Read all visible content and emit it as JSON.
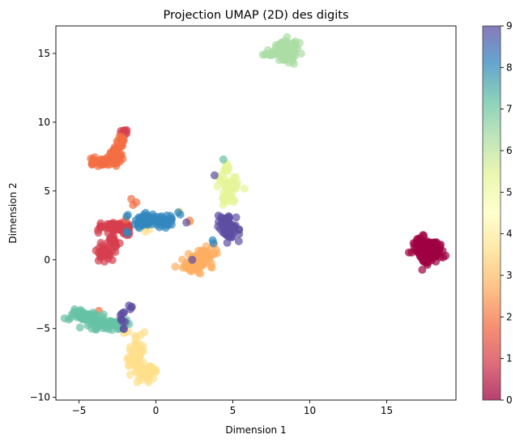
{
  "chart_data": {
    "type": "scatter",
    "title": "Projection UMAP (2D) des digits",
    "xlabel": "Dimension 1",
    "ylabel": "Dimension 2",
    "xlim": [
      -6.5,
      19.5
    ],
    "ylim": [
      -10.2,
      17.0
    ],
    "xticks": [
      -5,
      0,
      5,
      10,
      15
    ],
    "yticks": [
      -10,
      -5,
      0,
      5,
      10,
      15
    ],
    "grid": false,
    "colormap": "Spectral",
    "colorbar": {
      "range": [
        0,
        9
      ],
      "ticks": [
        0,
        1,
        2,
        3,
        4,
        5,
        6,
        7,
        8,
        9
      ]
    },
    "clusters": [
      {
        "label": 0,
        "color": "#9e0142",
        "blobs": [
          [
            17.5,
            0.9,
            0.4,
            0.4,
            90
          ],
          [
            18.0,
            0.6,
            0.3,
            0.35,
            60
          ],
          [
            17.4,
            0.2,
            0.15,
            0.3,
            20
          ]
        ]
      },
      {
        "label": 1,
        "color": "#d53e4f",
        "blobs": [
          [
            -2.6,
            2.4,
            0.6,
            0.15,
            60
          ],
          [
            -3.3,
            0.5,
            0.25,
            0.35,
            30
          ],
          [
            -2.9,
            1.1,
            0.2,
            0.25,
            15
          ],
          [
            -2.1,
            9.3,
            0.12,
            0.15,
            8
          ],
          [
            -2.0,
            1.9,
            0.2,
            0.12,
            8
          ],
          [
            -2.8,
            1.6,
            0.12,
            0.12,
            6
          ]
        ]
      },
      {
        "label": 2,
        "color": "#f46d43",
        "blobs": [
          [
            -3.4,
            7.1,
            0.5,
            0.15,
            45
          ],
          [
            -2.5,
            7.7,
            0.25,
            0.5,
            30
          ],
          [
            -2.3,
            8.6,
            0.1,
            0.25,
            10
          ],
          [
            -1.5,
            4.2,
            0.1,
            0.1,
            3
          ],
          [
            2.2,
            2.8,
            0.05,
            0.05,
            1
          ],
          [
            -3.7,
            -3.8,
            0.05,
            0.05,
            1
          ],
          [
            -2.0,
            3.0,
            0.05,
            0.05,
            1
          ]
        ]
      },
      {
        "label": 3,
        "color": "#fdae61",
        "blobs": [
          [
            2.6,
            0.0,
            0.4,
            0.3,
            50
          ],
          [
            2.3,
            -0.6,
            0.3,
            0.15,
            20
          ],
          [
            3.2,
            0.4,
            0.3,
            0.3,
            20
          ],
          [
            3.8,
            0.6,
            0.1,
            0.2,
            4
          ],
          [
            2.3,
            2.8,
            0.05,
            0.05,
            1
          ]
        ]
      },
      {
        "label": 4,
        "color": "#fee08b",
        "blobs": [
          [
            -1.3,
            -6.8,
            0.3,
            0.6,
            40
          ],
          [
            -0.8,
            -7.9,
            0.35,
            0.3,
            40
          ],
          [
            -0.6,
            -8.4,
            0.3,
            0.25,
            20
          ],
          [
            -2.0,
            -5.2,
            0.1,
            0.1,
            4
          ],
          [
            -0.6,
            2.2,
            0.1,
            0.1,
            3
          ],
          [
            1.5,
            3.5,
            0.05,
            0.05,
            1
          ]
        ]
      },
      {
        "label": 5,
        "color": "#e6f598",
        "blobs": [
          [
            4.8,
            5.2,
            0.3,
            0.6,
            45
          ],
          [
            4.6,
            6.6,
            0.15,
            0.3,
            12
          ],
          [
            4.1,
            5.8,
            0.1,
            0.2,
            5
          ]
        ]
      },
      {
        "label": 6,
        "color": "#abdda4",
        "blobs": [
          [
            8.5,
            15.0,
            0.4,
            0.4,
            60
          ],
          [
            8.6,
            15.6,
            0.25,
            0.2,
            20
          ],
          [
            7.5,
            15.0,
            0.3,
            0.12,
            15
          ]
        ]
      },
      {
        "label": 7,
        "color": "#66c2a5",
        "blobs": [
          [
            -4.6,
            -4.1,
            0.5,
            0.2,
            50
          ],
          [
            -3.6,
            -4.7,
            0.5,
            0.2,
            50
          ],
          [
            -2.6,
            -4.7,
            0.3,
            0.2,
            20
          ],
          [
            4.5,
            7.3,
            0.05,
            0.05,
            1
          ],
          [
            -1.9,
            -4.5,
            0.1,
            0.1,
            3
          ]
        ]
      },
      {
        "label": 8,
        "color": "#3288bd",
        "blobs": [
          [
            -0.4,
            2.9,
            0.5,
            0.25,
            50
          ],
          [
            0.5,
            2.8,
            0.3,
            0.25,
            25
          ],
          [
            -1.2,
            2.7,
            0.25,
            0.2,
            15
          ],
          [
            1.6,
            3.4,
            0.08,
            0.08,
            2
          ],
          [
            -2.0,
            2.0,
            0.08,
            0.08,
            2
          ],
          [
            3.8,
            1.5,
            0.1,
            0.1,
            2
          ]
        ]
      },
      {
        "label": 9,
        "color": "#5e4fa2",
        "blobs": [
          [
            4.8,
            2.3,
            0.35,
            0.4,
            55
          ],
          [
            4.5,
            2.9,
            0.25,
            0.15,
            15
          ],
          [
            -2.1,
            -4.2,
            0.1,
            0.25,
            8
          ],
          [
            -1.6,
            -3.5,
            0.1,
            0.1,
            4
          ],
          [
            3.8,
            6.2,
            0.05,
            0.05,
            1
          ],
          [
            2.0,
            2.7,
            0.05,
            0.05,
            1
          ],
          [
            2.5,
            0.0,
            0.05,
            0.05,
            1
          ],
          [
            -2.1,
            -5.0,
            0.08,
            0.08,
            2
          ]
        ]
      }
    ]
  }
}
